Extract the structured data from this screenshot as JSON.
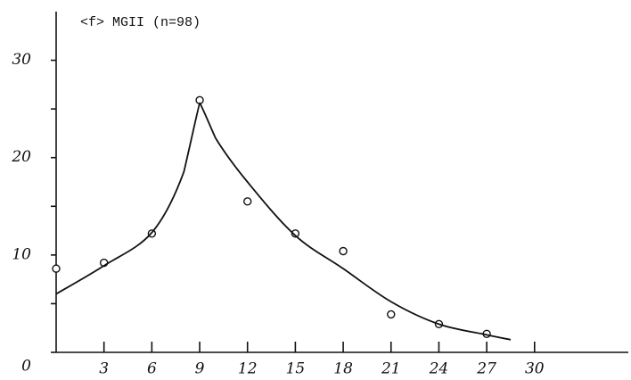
{
  "chart_data": {
    "type": "scatter",
    "title": "<f> MGII (n=98)",
    "xlim": [
      0,
      35.6
    ],
    "ylim": [
      0,
      35
    ],
    "xticks": [
      3,
      6,
      9,
      12,
      15,
      18,
      21,
      24,
      27,
      30
    ],
    "yticks": [
      0,
      10,
      20,
      30
    ],
    "yminorticks": [
      5,
      15,
      25
    ],
    "series": [
      {
        "x": [
          0,
          3,
          6,
          9,
          12,
          15,
          18,
          21,
          24,
          27
        ],
        "values": [
          8.6,
          9.2,
          12.2,
          25.9,
          15.5,
          12.2,
          10.4,
          3.9,
          2.9,
          1.9
        ],
        "color": "#111111",
        "marker": "circle"
      },
      {
        "x": [
          0,
          3,
          6,
          8,
          9,
          10,
          12,
          15,
          18,
          21,
          24,
          27,
          28.5
        ],
        "values": [
          6,
          8.9,
          12.3,
          18.5,
          25.6,
          22,
          17.5,
          12,
          8.6,
          5.2,
          2.9,
          1.8,
          1.3
        ],
        "color": "#111111",
        "marker": "line"
      }
    ]
  }
}
